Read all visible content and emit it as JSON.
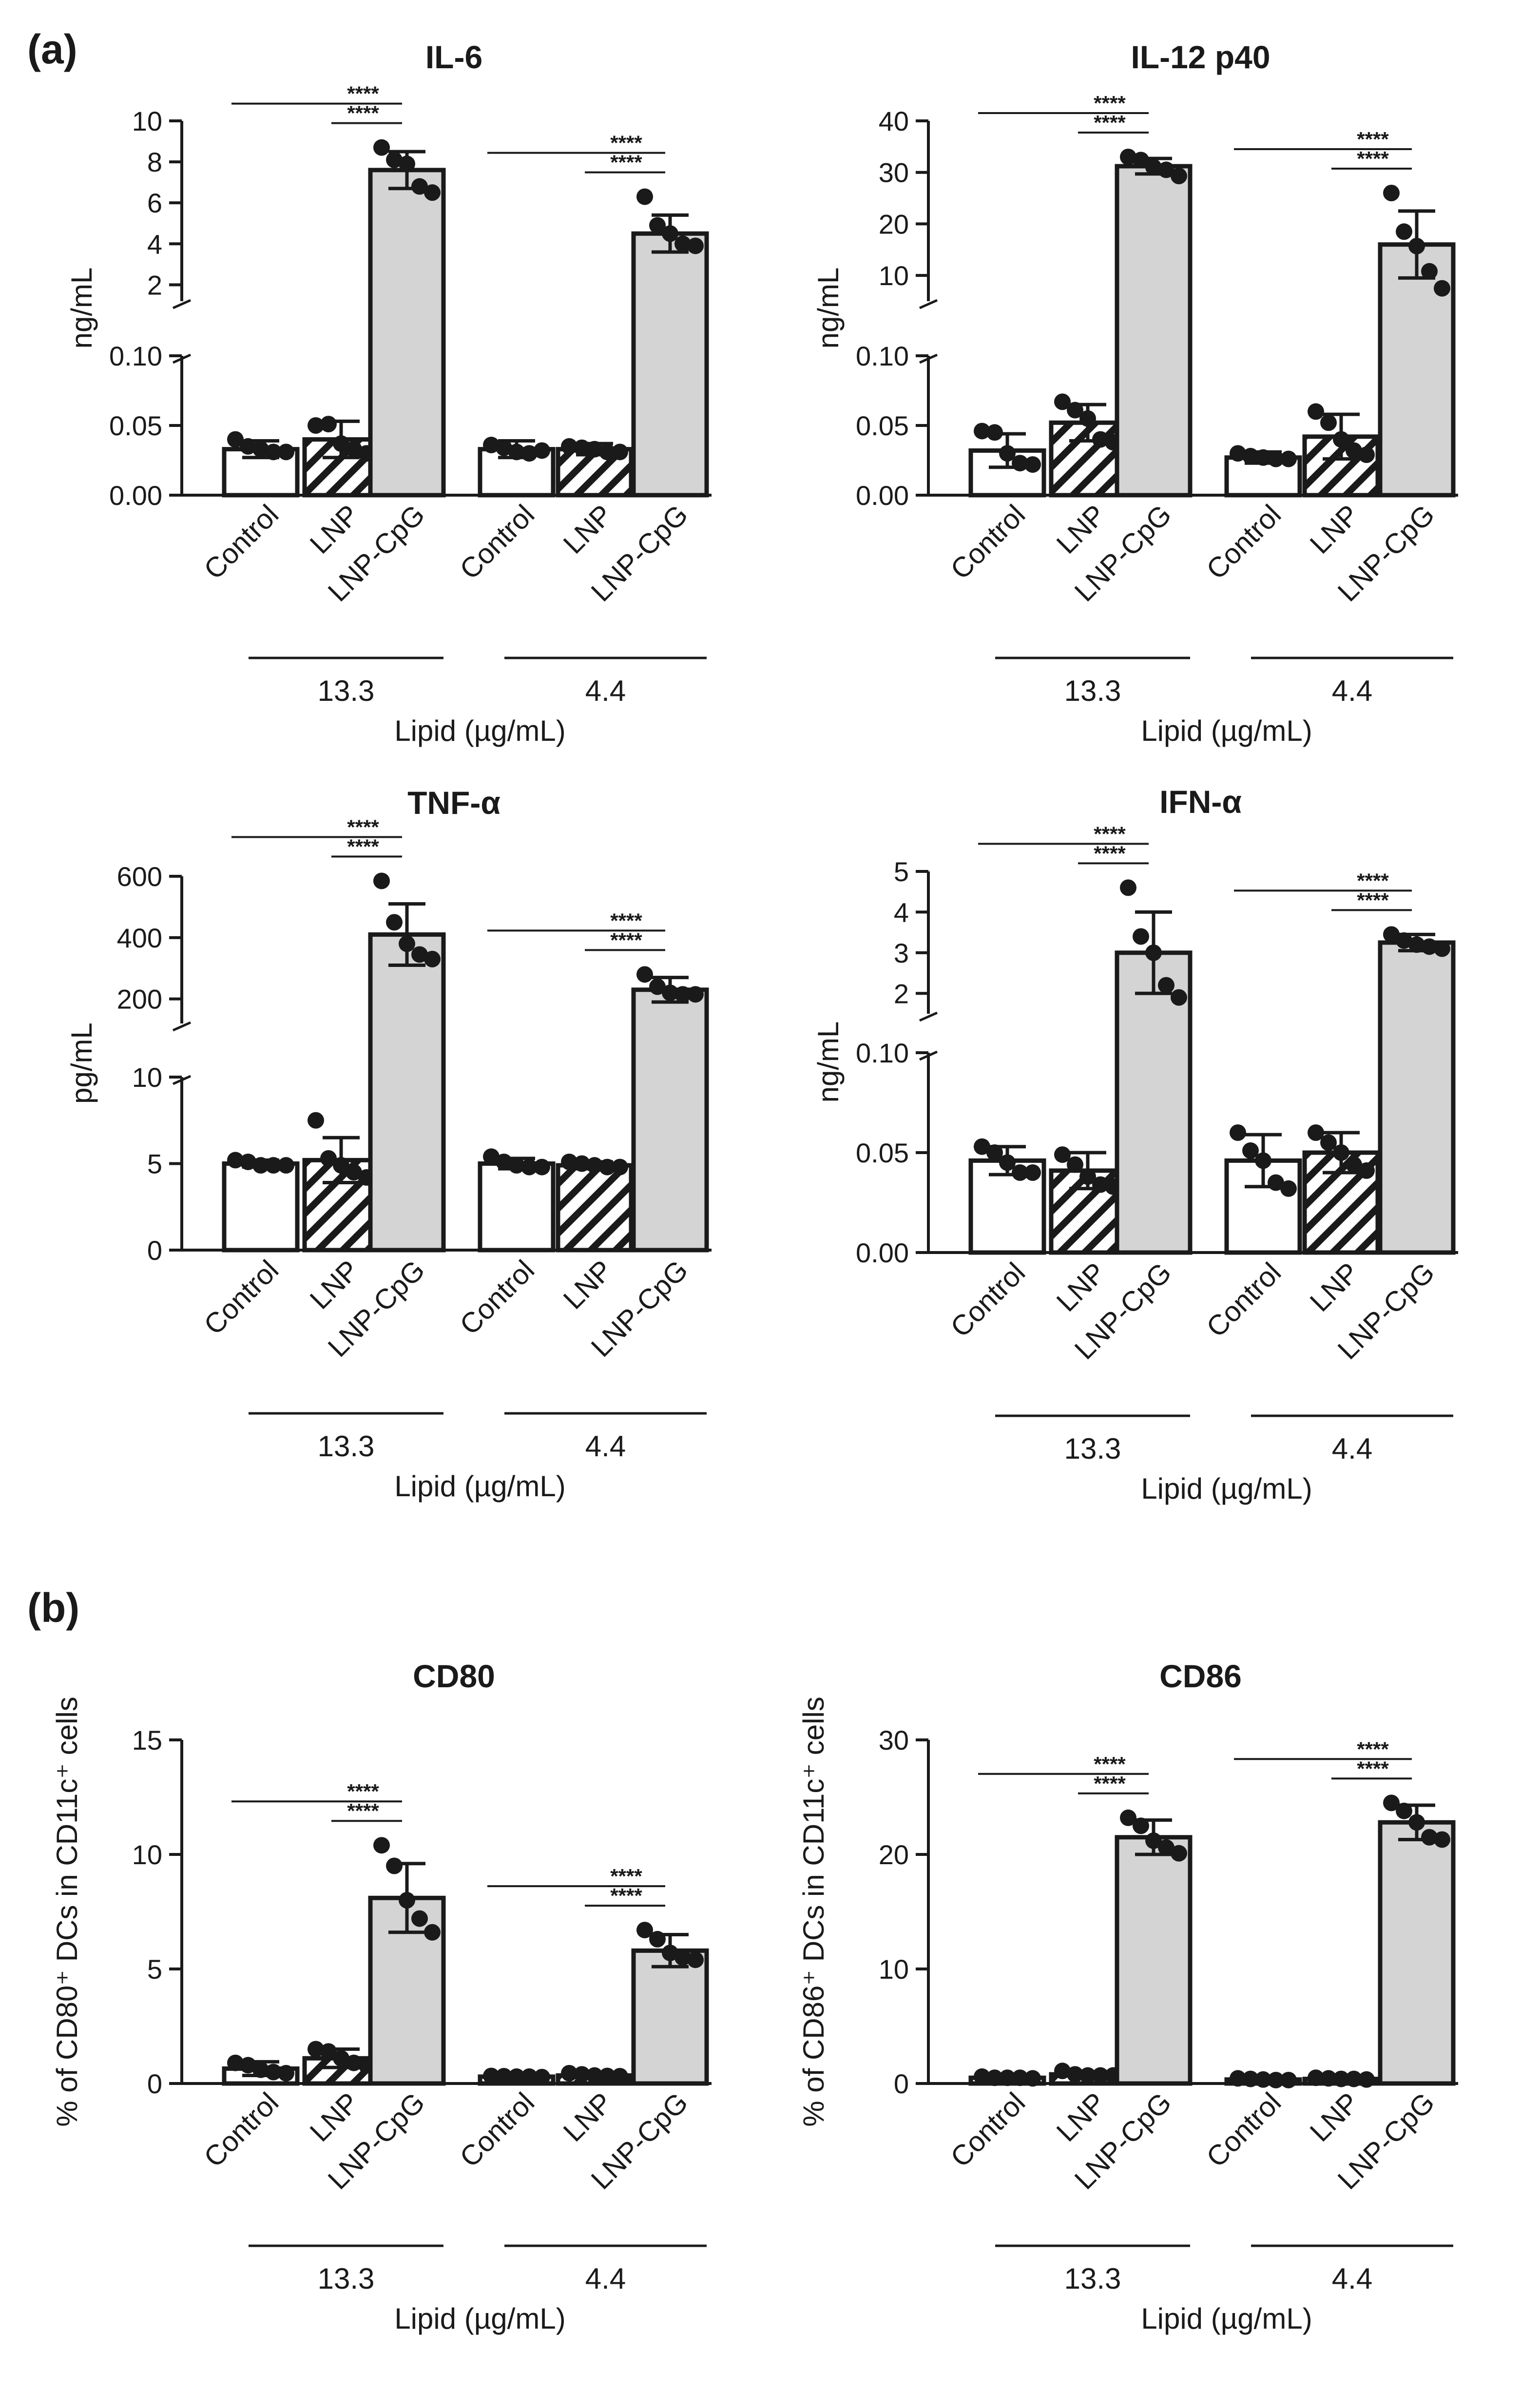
{
  "panels": [
    {
      "letter": "(a)"
    },
    {
      "letter": "(b)"
    }
  ],
  "colors": {
    "axis": "#1a1a1a",
    "bar_fill_control": "#ffffff",
    "bar_fill_cpg": "#d4d4d4",
    "bar_stroke": "#1a1a1a"
  },
  "chart_data": [
    {
      "type": "bar",
      "title": "IL-6",
      "ylabel": "ng/mL",
      "broken_axis": true,
      "lower": {
        "ylim": [
          0,
          0.1
        ],
        "ticks": [
          "0.00",
          "0.05",
          "0.10"
        ]
      },
      "upper": {
        "ylim": [
          1.2,
          10
        ],
        "ticks": [
          "2",
          "4",
          "6",
          "8",
          "10"
        ]
      },
      "categories": [
        "Control",
        "LNP",
        "LNP-CpG",
        "Control",
        "LNP",
        "LNP-CpG"
      ],
      "groups": [
        "13.3",
        "4.4"
      ],
      "xlabel": "Lipid (µg/mL)",
      "values": [
        0.033,
        0.04,
        7.6,
        0.033,
        0.033,
        4.5
      ],
      "errors": [
        0.006,
        0.013,
        0.9,
        0.006,
        0.004,
        0.9
      ],
      "points": [
        [
          0.04,
          0.035,
          0.033,
          0.031,
          0.031
        ],
        [
          0.05,
          0.051,
          0.037,
          0.033,
          0.03
        ],
        [
          8.7,
          8.1,
          7.9,
          6.8,
          6.5
        ],
        [
          0.036,
          0.034,
          0.031,
          0.03,
          0.032
        ],
        [
          0.035,
          0.034,
          0.033,
          0.031,
          0.031
        ],
        [
          6.3,
          4.9,
          4.5,
          4.0,
          3.9
        ]
      ],
      "significance": [
        {
          "label": "****"
        },
        {
          "label": "****"
        },
        {
          "label": "****"
        },
        {
          "label": "****"
        }
      ]
    },
    {
      "type": "bar",
      "title": "IL-12 p40",
      "ylabel": "ng/mL",
      "broken_axis": true,
      "lower": {
        "ylim": [
          0,
          0.1
        ],
        "ticks": [
          "0.00",
          "0.05",
          "0.10"
        ]
      },
      "upper": {
        "ylim": [
          5,
          40
        ],
        "ticks": [
          "10",
          "20",
          "30",
          "40"
        ]
      },
      "categories": [
        "Control",
        "LNP",
        "LNP-CpG",
        "Control",
        "LNP",
        "LNP-CpG"
      ],
      "groups": [
        "13.3",
        "4.4"
      ],
      "xlabel": "Lipid (µg/mL)",
      "values": [
        0.032,
        0.052,
        31.2,
        0.027,
        0.042,
        16.0
      ],
      "errors": [
        0.012,
        0.013,
        1.5,
        0.004,
        0.016,
        6.5
      ],
      "points": [
        [
          0.046,
          0.045,
          0.03,
          0.023,
          0.022
        ],
        [
          0.067,
          0.061,
          0.055,
          0.04,
          0.038
        ],
        [
          33,
          32.4,
          31.0,
          30.5,
          29.3
        ],
        [
          0.03,
          0.028,
          0.027,
          0.026,
          0.026
        ],
        [
          0.06,
          0.052,
          0.04,
          0.032,
          0.029
        ],
        [
          26,
          18.5,
          15.7,
          10.8,
          7.5
        ]
      ],
      "significance": [
        {
          "label": "****"
        },
        {
          "label": "****"
        },
        {
          "label": "****"
        },
        {
          "label": "****"
        }
      ]
    },
    {
      "type": "bar",
      "title": "TNF-α",
      "ylabel": "pg/mL",
      "broken_axis": true,
      "lower": {
        "ylim": [
          0,
          10
        ],
        "ticks": [
          "0",
          "5",
          "10"
        ]
      },
      "upper": {
        "ylim": [
          120,
          600
        ],
        "ticks": [
          "200",
          "400",
          "600"
        ]
      },
      "categories": [
        "Control",
        "LNP",
        "LNP-CpG",
        "Control",
        "LNP",
        "LNP-CpG"
      ],
      "groups": [
        "13.3",
        "4.4"
      ],
      "xlabel": "Lipid (µg/mL)",
      "values": [
        5.0,
        5.2,
        410,
        5.0,
        4.9,
        230
      ],
      "errors": [
        0.2,
        1.3,
        100,
        0.3,
        0.2,
        40
      ],
      "points": [
        [
          5.2,
          5.1,
          4.9,
          4.9,
          4.9
        ],
        [
          7.5,
          5.3,
          4.9,
          4.5,
          4.2
        ],
        [
          585,
          450,
          380,
          345,
          330
        ],
        [
          5.4,
          5.1,
          4.9,
          4.8,
          4.8
        ],
        [
          5.1,
          5.0,
          4.9,
          4.8,
          4.8
        ],
        [
          280,
          240,
          220,
          215,
          215
        ]
      ],
      "significance": [
        {
          "label": "****"
        },
        {
          "label": "****"
        },
        {
          "label": "****"
        },
        {
          "label": "****"
        }
      ]
    },
    {
      "type": "bar",
      "title": "IFN-α",
      "ylabel": "ng/mL",
      "broken_axis": true,
      "lower": {
        "ylim": [
          0,
          0.1
        ],
        "ticks": [
          "0.00",
          "0.05",
          "0.10"
        ]
      },
      "upper": {
        "ylim": [
          1.5,
          5
        ],
        "ticks": [
          "2",
          "3",
          "4",
          "5"
        ]
      },
      "categories": [
        "Control",
        "LNP",
        "LNP-CpG",
        "Control",
        "LNP",
        "LNP-CpG"
      ],
      "groups": [
        "13.3",
        "4.4"
      ],
      "xlabel": "Lipid (µg/mL)",
      "values": [
        0.046,
        0.041,
        3.0,
        0.046,
        0.05,
        3.25
      ],
      "errors": [
        0.007,
        0.009,
        1.0,
        0.013,
        0.01,
        0.2
      ],
      "points": [
        [
          0.053,
          0.05,
          0.045,
          0.04,
          0.04
        ],
        [
          0.049,
          0.044,
          0.038,
          0.034,
          0.033
        ],
        [
          4.6,
          3.4,
          3.0,
          2.2,
          1.9
        ],
        [
          0.06,
          0.051,
          0.046,
          0.035,
          0.032
        ],
        [
          0.06,
          0.055,
          0.05,
          0.044,
          0.041
        ],
        [
          3.45,
          3.3,
          3.2,
          3.15,
          3.1
        ]
      ],
      "significance": [
        {
          "label": "****"
        },
        {
          "label": "****"
        },
        {
          "label": "****"
        },
        {
          "label": "****"
        }
      ]
    },
    {
      "type": "bar",
      "title": "CD80",
      "ylabel": "% of CD80⁺ DCs in CD11c⁺ cells",
      "broken_axis": false,
      "ylim": [
        0,
        15
      ],
      "ticks": [
        "0",
        "5",
        "10",
        "15"
      ],
      "categories": [
        "Control",
        "LNP",
        "LNP-CpG",
        "Control",
        "LNP",
        "LNP-CpG"
      ],
      "groups": [
        "13.3",
        "4.4"
      ],
      "xlabel": "Lipid (µg/mL)",
      "values": [
        0.65,
        1.1,
        8.1,
        0.3,
        0.35,
        5.8
      ],
      "errors": [
        0.3,
        0.4,
        1.5,
        0.05,
        0.08,
        0.7
      ],
      "points": [
        [
          0.9,
          0.8,
          0.6,
          0.5,
          0.45
        ],
        [
          1.5,
          1.4,
          1.1,
          0.9,
          0.8
        ],
        [
          10.4,
          9.5,
          8.0,
          7.2,
          6.6
        ],
        [
          0.33,
          0.32,
          0.3,
          0.3,
          0.28
        ],
        [
          0.45,
          0.4,
          0.35,
          0.33,
          0.32
        ],
        [
          6.7,
          6.3,
          5.7,
          5.5,
          5.4
        ]
      ],
      "significance": [
        {
          "label": "****"
        },
        {
          "label": "****"
        },
        {
          "label": "****"
        },
        {
          "label": "****"
        }
      ]
    },
    {
      "type": "bar",
      "title": "CD86",
      "ylabel": "% of CD86⁺ DCs in CD11c⁺ cells",
      "broken_axis": false,
      "ylim": [
        0,
        30
      ],
      "ticks": [
        "0",
        "10",
        "20",
        "30"
      ],
      "categories": [
        "Control",
        "LNP",
        "LNP-CpG",
        "Control",
        "LNP",
        "LNP-CpG"
      ],
      "groups": [
        "13.3",
        "4.4"
      ],
      "xlabel": "Lipid (µg/mL)",
      "values": [
        0.5,
        0.8,
        21.5,
        0.35,
        0.4,
        22.8
      ],
      "errors": [
        0.1,
        0.2,
        1.5,
        0.08,
        0.1,
        1.5
      ],
      "points": [
        [
          0.6,
          0.5,
          0.5,
          0.5,
          0.45
        ],
        [
          1.1,
          0.8,
          0.7,
          0.7,
          0.7
        ],
        [
          23.2,
          22.5,
          21.2,
          20.6,
          20.1
        ],
        [
          0.45,
          0.4,
          0.35,
          0.3,
          0.3
        ],
        [
          0.5,
          0.45,
          0.4,
          0.4,
          0.35
        ],
        [
          24.5,
          23.8,
          22.8,
          21.5,
          21.3
        ]
      ],
      "significance": [
        {
          "label": "****"
        },
        {
          "label": "****"
        },
        {
          "label": "****"
        },
        {
          "label": "****"
        }
      ]
    }
  ]
}
